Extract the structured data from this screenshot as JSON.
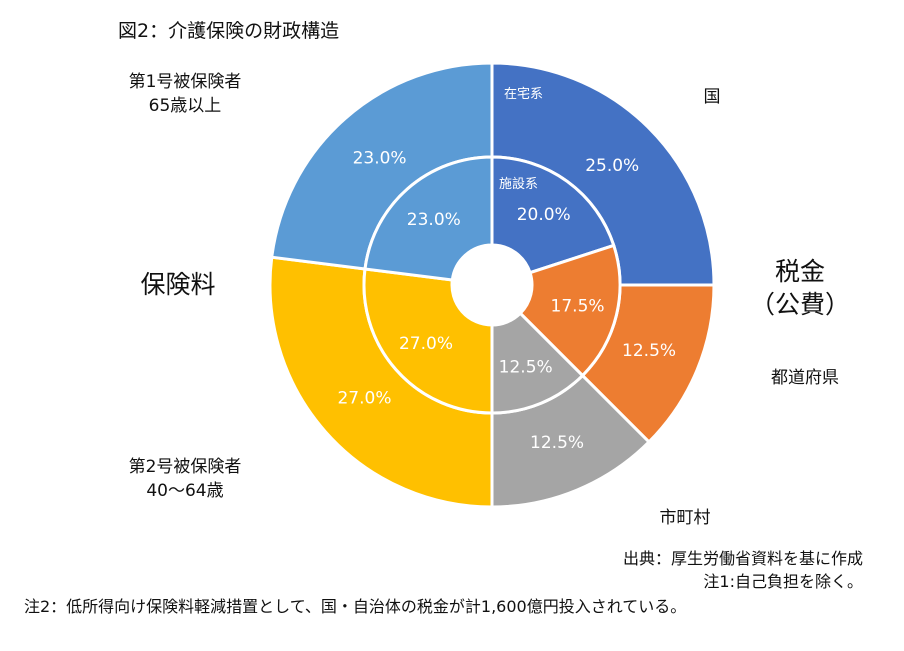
{
  "title": "図2：介護保険の財政構造",
  "chart_data": {
    "type": "pie",
    "subtype": "double-donut",
    "rings": [
      {
        "name": "在宅系",
        "values": [
          25.0,
          12.5,
          12.5,
          27.0,
          23.0
        ],
        "labels": [
          "25.0%",
          "12.5%",
          "12.5%",
          "27.0%",
          "23.0%"
        ]
      },
      {
        "name": "施設系",
        "values": [
          20.0,
          17.5,
          12.5,
          27.0,
          23.0
        ],
        "labels": [
          "20.0%",
          "17.5%",
          "12.5%",
          "27.0%",
          "23.0%"
        ]
      }
    ],
    "categories": [
      "国",
      "都道府県",
      "市町村",
      "第2号被保険者 40〜64歳",
      "第1号被保険者 65歳以上"
    ],
    "colors": [
      "#4472c4",
      "#ed7d31",
      "#a5a5a5",
      "#ffc000",
      "#5b9bd5"
    ],
    "start_angle": "12 o'clock, clockwise"
  },
  "labels": {
    "kuni": "国",
    "todofuken": "都道府県",
    "shichoson": "市町村",
    "dai1": [
      "第1号被保険者",
      "65歳以上"
    ],
    "dai2": [
      "第2号被保険者",
      "40〜64歳"
    ],
    "hokenryo": "保険料",
    "zeikin": [
      "税金",
      "（公費）"
    ]
  },
  "notes": {
    "source": "出典：厚生労働省資料を基に作成",
    "note1": "注1:自己負担を除く。",
    "note2": "注2：低所得向け保険料軽減措置として、国・自治体の税金が計1,600億円投入されている。"
  }
}
